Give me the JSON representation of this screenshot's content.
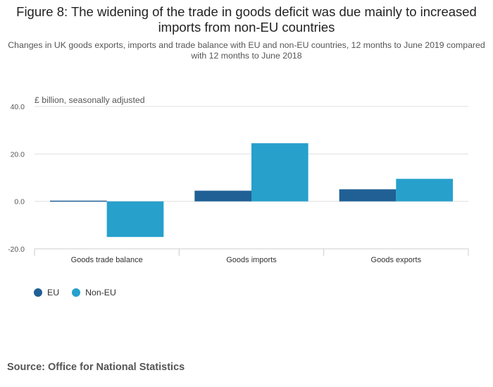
{
  "title": "Figure 8: The widening of the trade in goods deficit was due mainly to increased imports from non-EU countries",
  "subtitle": "Changes in UK goods exports, imports and trade balance with EU and non-EU countries, 12 months to June 2019 compared with 12 months to June 2018",
  "source": "Source: Office for National Statistics",
  "colors": {
    "eu": "#206095",
    "non_eu": "#27a0cc",
    "grid": "#e0e0e0",
    "axis": "#cccccc"
  },
  "chart_data": {
    "type": "bar",
    "title": "Figure 8: The widening of the trade in goods deficit was due mainly to increased imports from non-EU countries",
    "ylabel": "£ billion, seasonally adjusted",
    "xlabel": "",
    "categories": [
      "Goods trade balance",
      "Goods imports",
      "Goods exports"
    ],
    "series": [
      {
        "name": "EU",
        "values": [
          0.3,
          4.5,
          5.1
        ]
      },
      {
        "name": "Non-EU",
        "values": [
          -15.0,
          24.5,
          9.5
        ]
      }
    ],
    "ylim": [
      -20,
      40
    ],
    "yticks": [
      -20,
      0,
      20,
      40
    ],
    "ytick_labels": [
      "-20.0",
      "0.0",
      "20.0",
      "40.0"
    ],
    "grid": true,
    "legend": "bottom-left"
  }
}
